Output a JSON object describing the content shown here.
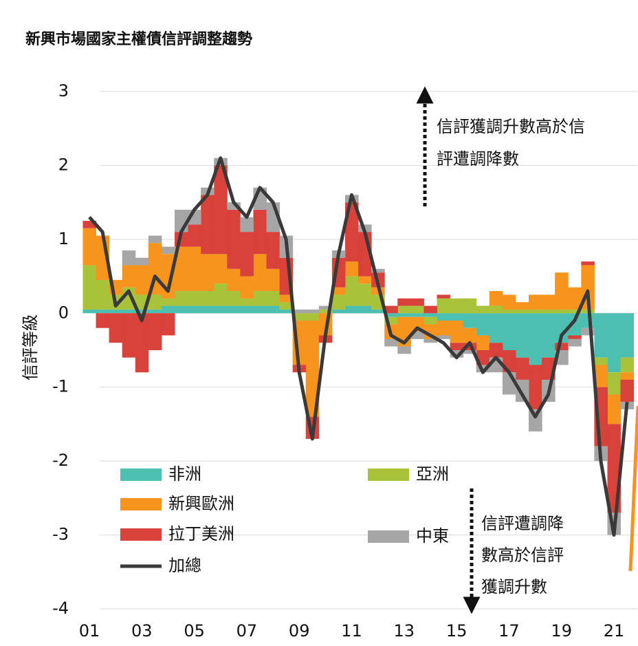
{
  "chart_data": {
    "type": "bar",
    "stacked": true,
    "title": "新興市場國家主權債信評調整趨勢",
    "y_label": "信評等級",
    "annotations": [
      [
        "信評獲調升數高於信",
        "評遭調降數"
      ],
      [
        "信評遭調降",
        "數高於信評",
        "獲調升數"
      ]
    ],
    "x": [
      2001,
      2001.5,
      2002,
      2002.5,
      2003,
      2003.5,
      2004,
      2004.5,
      2005,
      2005.5,
      2006,
      2006.5,
      2007,
      2007.5,
      2008,
      2008.5,
      2009,
      2009.5,
      2010,
      2010.5,
      2011,
      2011.5,
      2012,
      2012.5,
      2013,
      2013.5,
      2014,
      2014.5,
      2015,
      2015.5,
      2016,
      2016.5,
      2017,
      2017.5,
      2018,
      2018.5,
      2019,
      2019.5,
      2020,
      2020.5,
      2021,
      2021.5
    ],
    "series": [
      {
        "name": "非洲",
        "color": "#4dbfb0",
        "values": [
          0.05,
          0.05,
          0.05,
          0.05,
          0.05,
          0.05,
          0.1,
          0.1,
          0.1,
          0.1,
          0.1,
          0.1,
          0.1,
          0.1,
          0.1,
          0.05,
          0,
          0,
          0,
          0.05,
          0.1,
          0.1,
          0.05,
          -0.05,
          -0.05,
          -0.05,
          -0.05,
          -0.1,
          -0.1,
          -0.2,
          -0.3,
          -0.4,
          -0.5,
          -0.6,
          -0.7,
          -0.6,
          -0.4,
          -0.3,
          -0.2,
          -0.6,
          -0.8,
          -0.6
        ]
      },
      {
        "name": "亞洲",
        "color": "#a8c23a",
        "values": [
          0.6,
          0.4,
          0.2,
          0.3,
          0.2,
          0.2,
          0.1,
          0.2,
          0.2,
          0.2,
          0.3,
          0.2,
          0.1,
          0.2,
          0.2,
          0.1,
          -0.1,
          -0.1,
          0.05,
          0.2,
          0.4,
          0.3,
          0.2,
          -0.1,
          0.1,
          0.1,
          -0.1,
          0.2,
          0.2,
          0.2,
          0.1,
          0.1,
          0.05,
          0.05,
          0.05,
          0.05,
          0.05,
          0.05,
          0.05,
          -0.1,
          -0.3,
          -0.2
        ]
      },
      {
        "name": "新興歐洲",
        "color": "#f7941d",
        "values": [
          0.5,
          0.6,
          0.2,
          0.3,
          0.4,
          0.7,
          0.6,
          0.6,
          0.6,
          0.5,
          0.4,
          0.3,
          0.3,
          0.5,
          0.3,
          0.1,
          -0.6,
          -1.3,
          -0.3,
          0.1,
          0.2,
          0.1,
          0.1,
          -0.2,
          -0.4,
          -0.2,
          -0.2,
          -0.2,
          -0.3,
          -0.2,
          -0.2,
          0.2,
          0.2,
          0.1,
          0.2,
          0.2,
          0.5,
          0.3,
          0.6,
          -0.3,
          -0.4,
          -0.1
        ]
      },
      {
        "name": "拉丁美洲",
        "color": "#d9413b",
        "values": [
          0.1,
          -0.2,
          -0.4,
          -0.6,
          -0.8,
          -0.5,
          -0.3,
          0.2,
          0.3,
          0.8,
          1.2,
          0.8,
          0.6,
          0.6,
          0.5,
          0.5,
          -0.1,
          -0.3,
          -0.1,
          0.4,
          0.8,
          0.6,
          0.2,
          0.1,
          0.1,
          0.1,
          0.1,
          0.05,
          -0.1,
          -0.1,
          -0.2,
          -0.2,
          -0.3,
          -0.3,
          -0.6,
          -0.3,
          -0.1,
          -0.05,
          0.05,
          -0.8,
          -1.2,
          -0.3
        ]
      },
      {
        "name": "中東",
        "color": "#a6a6a6",
        "values": [
          0,
          0,
          0,
          0.2,
          0.1,
          0.1,
          0.1,
          0.3,
          0.2,
          0.1,
          0.1,
          0.1,
          0.2,
          0.3,
          0.4,
          0.3,
          0.05,
          0.05,
          0.05,
          0.1,
          0.1,
          0.1,
          0.05,
          -0.1,
          -0.1,
          -0.1,
          -0.05,
          -0.05,
          -0.1,
          -0.05,
          -0.1,
          -0.2,
          -0.3,
          -0.3,
          -0.3,
          -0.3,
          -0.2,
          -0.1,
          -0.1,
          -0.2,
          -0.3,
          -0.1
        ]
      },
      {
        "name": "加總",
        "color": "#3a3a3a",
        "type": "line",
        "values": [
          1.3,
          1.1,
          0.1,
          0.3,
          -0.1,
          0.5,
          0.3,
          1.1,
          1.4,
          1.6,
          2.1,
          1.5,
          1.3,
          1.7,
          1.5,
          1.0,
          -0.8,
          -1.7,
          -0.3,
          0.8,
          1.6,
          1.1,
          0.4,
          -0.3,
          -0.4,
          -0.2,
          -0.3,
          -0.4,
          -0.6,
          -0.4,
          -0.8,
          -0.6,
          -0.8,
          -1.1,
          -1.4,
          -1.1,
          -0.3,
          -0.1,
          0.3,
          -2.0,
          -3.0,
          -1.2
        ]
      }
    ],
    "xlim": [
      2000.6,
      2022.0
    ],
    "ylim": [
      -4,
      3
    ],
    "yticks": [
      -4,
      -3,
      -2,
      -1,
      0,
      1,
      2,
      3
    ],
    "xticks": [
      {
        "value": 2001,
        "label": "01"
      },
      {
        "value": 2003,
        "label": "03"
      },
      {
        "value": 2005,
        "label": "05"
      },
      {
        "value": 2007,
        "label": "07"
      },
      {
        "value": 2009,
        "label": "09"
      },
      {
        "value": 2011,
        "label": "11"
      },
      {
        "value": 2013,
        "label": "13"
      },
      {
        "value": 2015,
        "label": "15"
      },
      {
        "value": 2017,
        "label": "17"
      },
      {
        "value": 2019,
        "label": "19"
      },
      {
        "value": 2021,
        "label": "21"
      }
    ],
    "grid": true
  }
}
